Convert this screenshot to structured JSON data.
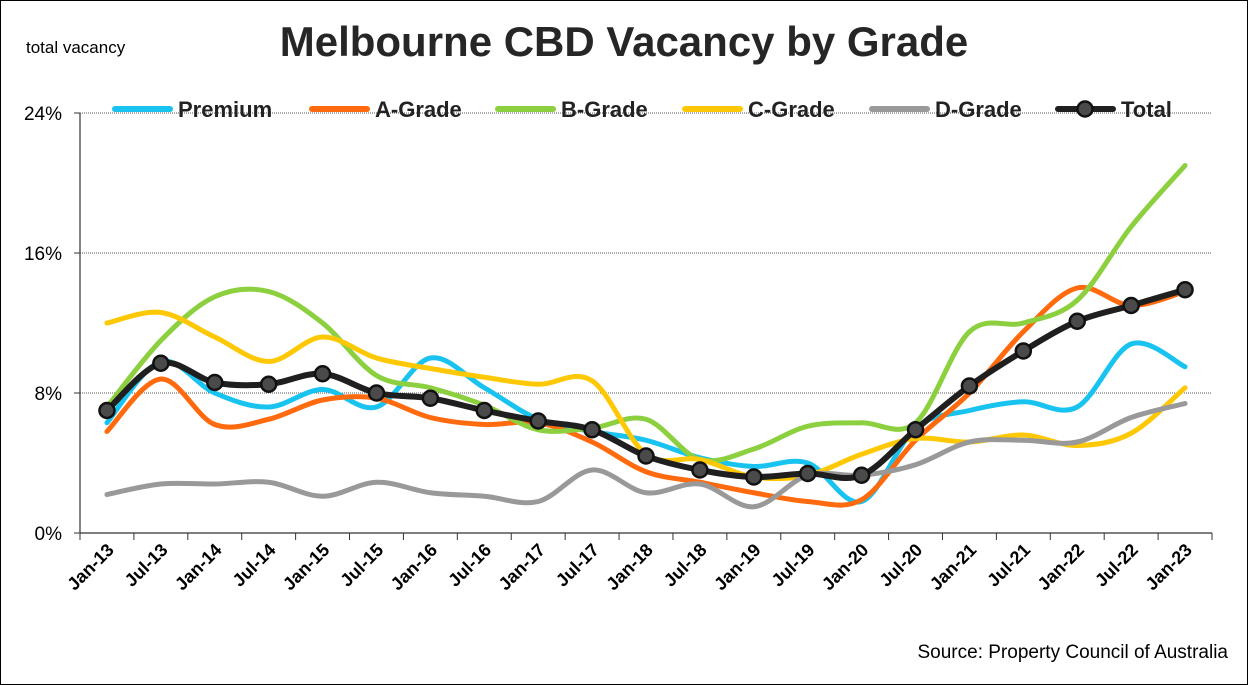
{
  "chart_data": {
    "type": "line",
    "title": "Melbourne CBD Vacancy by Grade",
    "ylabel": "total vacancy",
    "source": "Source: Property Council of Australia",
    "ylim": [
      0,
      24
    ],
    "yticks": [
      "0%",
      "8%",
      "16%",
      "24%"
    ],
    "ytick_values": [
      0,
      8,
      16,
      24
    ],
    "x": [
      "Jan-13",
      "Jul-13",
      "Jan-14",
      "Jul-14",
      "Jan-15",
      "Jul-15",
      "Jan-16",
      "Jul-16",
      "Jan-17",
      "Jul-17",
      "Jan-18",
      "Jul-18",
      "Jan-19",
      "Jul-19",
      "Jan-20",
      "Jul-20",
      "Jan-21",
      "Jul-21",
      "Jan-22",
      "Jul-22",
      "Jan-23"
    ],
    "grid": "horizontal",
    "legend_position": "top",
    "series": [
      {
        "name": "Premium",
        "color": "#19C3F0",
        "values": [
          6.3,
          9.8,
          8.0,
          7.2,
          8.2,
          7.2,
          10.0,
          8.3,
          6.5,
          5.8,
          5.3,
          4.3,
          3.8,
          4.0,
          1.8,
          6.0,
          7.0,
          7.5,
          7.2,
          10.8,
          9.5
        ]
      },
      {
        "name": "A-Grade",
        "color": "#FF6A0E",
        "values": [
          5.8,
          8.8,
          6.2,
          6.5,
          7.6,
          7.7,
          6.6,
          6.2,
          6.3,
          5.2,
          3.5,
          2.9,
          2.3,
          1.8,
          1.9,
          5.3,
          8.0,
          11.5,
          14.0,
          13.0,
          13.8
        ]
      },
      {
        "name": "B-Grade",
        "color": "#8CD040",
        "values": [
          7.2,
          11.0,
          13.5,
          13.8,
          12.0,
          9.0,
          8.3,
          7.3,
          5.9,
          6.0,
          6.5,
          4.2,
          4.8,
          6.1,
          6.3,
          6.3,
          11.5,
          12.0,
          13.3,
          17.5,
          21.0
        ]
      },
      {
        "name": "C-Grade",
        "color": "#FFC805",
        "values": [
          12.0,
          12.6,
          11.2,
          9.8,
          11.2,
          10.0,
          9.4,
          8.9,
          8.5,
          8.7,
          4.5,
          4.2,
          3.2,
          3.3,
          4.5,
          5.4,
          5.2,
          5.6,
          5.0,
          5.7,
          8.3
        ]
      },
      {
        "name": "D-Grade",
        "color": "#999999",
        "values": [
          2.2,
          2.8,
          2.8,
          2.9,
          2.1,
          2.9,
          2.3,
          2.1,
          1.8,
          3.6,
          2.3,
          2.8,
          1.5,
          3.3,
          3.3,
          3.9,
          5.2,
          5.3,
          5.2,
          6.6,
          7.4
        ]
      },
      {
        "name": "Total",
        "color": "#1F1F1F",
        "values": [
          7.0,
          9.7,
          8.6,
          8.5,
          9.1,
          8.0,
          7.7,
          7.0,
          6.4,
          5.9,
          4.4,
          3.6,
          3.2,
          3.4,
          3.3,
          5.9,
          8.4,
          10.4,
          12.1,
          13.0,
          13.9
        ]
      }
    ]
  }
}
